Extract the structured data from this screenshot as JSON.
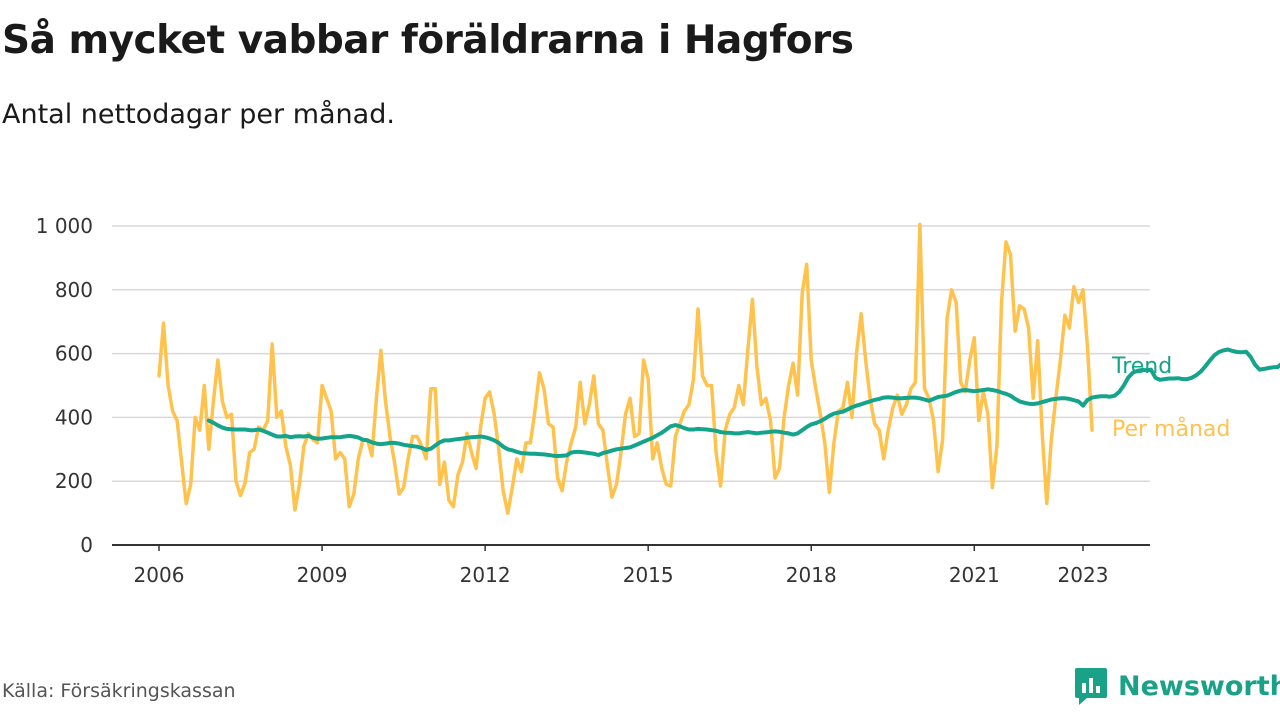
{
  "title": "Så mycket vabbar föräldrarna i Hagfors",
  "subtitle": "Antal nettodagar per månad.",
  "source": "Källa: Försäkringskassan",
  "brand": {
    "name": "Newsworthy",
    "icon": "newsworthy-logo-icon"
  },
  "colors": {
    "per_month": "#ffc34d",
    "trend": "#14a38b",
    "brand": "#19a287",
    "grid": "#d9d9d9",
    "axis": "#333333"
  },
  "chart_data": {
    "type": "line",
    "xlim": [
      2006,
      2024
    ],
    "ylim": [
      0,
      1000
    ],
    "x_ticks": [
      "2006",
      "2009",
      "2012",
      "2015",
      "2018",
      "2021",
      "2023"
    ],
    "y_ticks": [
      "0",
      "200",
      "400",
      "600",
      "800",
      "1 000"
    ],
    "y_tick_values": [
      0,
      200,
      400,
      600,
      800,
      1000
    ],
    "grid": true,
    "series": [
      {
        "name": "Per månad",
        "color": "#ffc34d",
        "start": "2006-01",
        "step": "month",
        "values": [
          530,
          695,
          500,
          420,
          390,
          260,
          130,
          190,
          400,
          360,
          500,
          300,
          450,
          580,
          450,
          400,
          410,
          200,
          155,
          195,
          290,
          300,
          370,
          360,
          390,
          630,
          400,
          420,
          310,
          250,
          110,
          190,
          310,
          350,
          330,
          320,
          500,
          460,
          420,
          270,
          290,
          270,
          120,
          160,
          270,
          330,
          330,
          280,
          460,
          610,
          450,
          340,
          260,
          160,
          180,
          270,
          340,
          340,
          310,
          270,
          490,
          490,
          190,
          260,
          140,
          120,
          220,
          260,
          350,
          290,
          240,
          370,
          460,
          480,
          410,
          300,
          170,
          100,
          180,
          270,
          230,
          320,
          320,
          420,
          540,
          490,
          380,
          370,
          210,
          170,
          260,
          320,
          370,
          510,
          380,
          440,
          530,
          380,
          360,
          250,
          150,
          190,
          290,
          410,
          460,
          340,
          350,
          580,
          520,
          270,
          320,
          240,
          190,
          185,
          340,
          380,
          420,
          440,
          520,
          740,
          530,
          500,
          500,
          290,
          185,
          360,
          410,
          430,
          500,
          440,
          610,
          770,
          560,
          440,
          460,
          390,
          210,
          240,
          400,
          500,
          570,
          470,
          790,
          880,
          580,
          490,
          410,
          320,
          165,
          320,
          420,
          430,
          510,
          400,
          600,
          725,
          580,
          460,
          380,
          360,
          270,
          360,
          430,
          470,
          410,
          440,
          490,
          510,
          1005,
          490,
          460,
          390,
          230,
          330,
          710,
          800,
          760,
          510,
          480,
          580,
          650,
          390,
          480,
          410,
          180,
          310,
          760,
          950,
          910,
          670,
          750,
          740,
          680,
          460,
          640,
          350,
          130,
          330,
          460,
          580,
          720,
          680,
          810,
          760,
          800,
          620,
          360
        ]
      },
      {
        "name": "Trend",
        "color": "#14a38b",
        "start": "2006-12",
        "step": "month",
        "values": [
          390,
          383,
          375,
          368,
          364,
          363,
          362,
          362,
          362,
          360,
          360,
          362,
          358,
          352,
          346,
          340,
          340,
          342,
          338,
          340,
          341,
          340,
          342,
          336,
          333,
          334,
          336,
          338,
          338,
          338,
          340,
          342,
          340,
          337,
          330,
          328,
          322,
          318,
          316,
          318,
          320,
          320,
          318,
          314,
          312,
          310,
          308,
          304,
          298,
          302,
          312,
          322,
          328,
          328,
          330,
          332,
          334,
          336,
          338,
          339,
          340,
          338,
          334,
          328,
          320,
          308,
          300,
          297,
          292,
          288,
          287,
          286,
          286,
          285,
          284,
          282,
          280,
          279,
          280,
          281,
          290,
          292,
          292,
          290,
          288,
          286,
          282,
          288,
          292,
          296,
          300,
          302,
          304,
          306,
          312,
          318,
          324,
          330,
          336,
          344,
          352,
          362,
          372,
          376,
          372,
          366,
          362,
          362,
          364,
          363,
          362,
          360,
          358,
          354,
          352,
          352,
          350,
          350,
          352,
          354,
          352,
          350,
          352,
          353,
          355,
          356,
          355,
          352,
          350,
          346,
          350,
          360,
          370,
          378,
          382,
          388,
          396,
          405,
          412,
          415,
          418,
          425,
          432,
          437,
          441,
          446,
          450,
          455,
          458,
          462,
          463,
          462,
          460,
          460,
          461,
          462,
          462,
          460,
          456,
          452,
          458,
          464,
          466,
          468,
          474,
          480,
          484,
          486,
          484,
          482,
          484,
          486,
          488,
          486,
          483,
          478,
          474,
          468,
          458,
          450,
          446,
          443,
          442,
          444,
          448,
          452,
          456,
          458,
          460,
          460,
          458,
          454,
          450,
          437,
          455,
          462,
          465,
          466,
          466,
          465,
          468,
          480,
          500,
          525,
          540,
          546,
          549,
          548,
          550,
          524,
          518,
          520,
          522,
          522,
          523,
          520,
          520,
          524,
          532,
          544,
          560,
          578,
          595,
          605,
          610,
          613,
          608,
          605,
          604,
          606,
          590,
          565,
          550,
          552,
          555,
          557,
          558,
          570,
          572,
          560,
          548
        ]
      }
    ]
  }
}
